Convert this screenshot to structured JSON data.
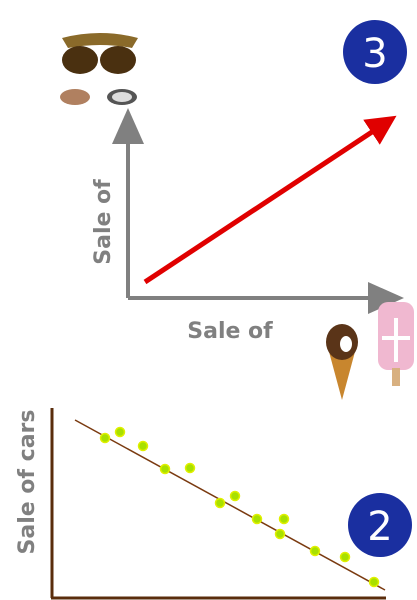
{
  "top_panel": {
    "badge": "3",
    "y_label": "Sale of",
    "x_label": "Sale of"
  },
  "bottom_panel": {
    "badge": "2",
    "y_label": "Sale of cars"
  }
}
